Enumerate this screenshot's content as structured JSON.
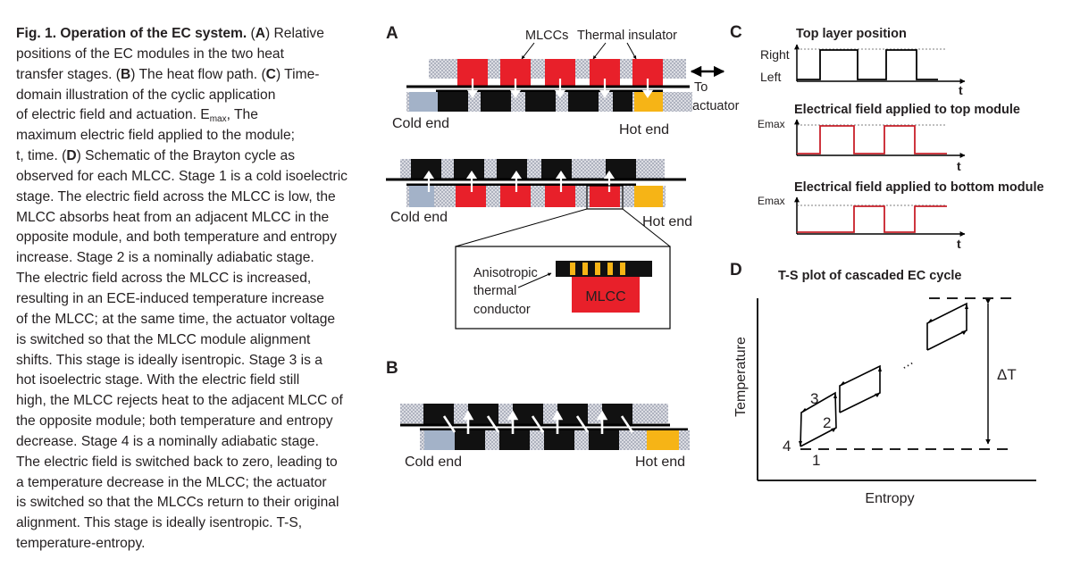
{
  "caption": {
    "fig_label": "Fig. 1. Operation of the EC system.",
    "lines": [
      [
        {
          "t": "Fig. 1. Operation of the EC system.",
          "b": true
        },
        {
          "t": " ("
        },
        {
          "t": "A",
          "b": true
        },
        {
          "t": ") Relative"
        }
      ],
      [
        {
          "t": "positions of the EC modules in the two heat"
        }
      ],
      [
        {
          "t": "transfer stages. ("
        },
        {
          "t": "B",
          "b": true
        },
        {
          "t": ") The heat flow path. ("
        },
        {
          "t": "C",
          "b": true
        },
        {
          "t": ") Time-"
        }
      ],
      [
        {
          "t": "domain illustration of the cyclic application"
        }
      ],
      [
        {
          "t": "of electric field and actuation. E"
        },
        {
          "t": "max",
          "sub": true
        },
        {
          "t": ", The"
        }
      ],
      [
        {
          "t": "maximum electric field applied to the module;"
        }
      ],
      [
        {
          "t": "t, time. ("
        },
        {
          "t": "D",
          "b": true
        },
        {
          "t": ") Schematic of the Brayton cycle as"
        }
      ],
      [
        {
          "t": "observed for each MLCC. Stage 1 is a cold isoelectric"
        }
      ],
      [
        {
          "t": "stage. The electric field across the MLCC is low, the"
        }
      ],
      [
        {
          "t": "MLCC absorbs heat from an adjacent MLCC in the"
        }
      ],
      [
        {
          "t": "opposite module, and both temperature and entropy"
        }
      ],
      [
        {
          "t": "increase. Stage 2 is a nominally adiabatic stage."
        }
      ],
      [
        {
          "t": "The electric field across the MLCC is increased,"
        }
      ],
      [
        {
          "t": "resulting in an ECE-induced temperature increase"
        }
      ],
      [
        {
          "t": "of the MLCC; at the same time, the actuator voltage"
        }
      ],
      [
        {
          "t": "is switched so that the MLCC module alignment"
        }
      ],
      [
        {
          "t": "shifts. This stage is ideally isentropic. Stage 3 is a"
        }
      ],
      [
        {
          "t": "hot isoelectric stage. With the electric field still"
        }
      ],
      [
        {
          "t": "high, the MLCC rejects heat to the adjacent MLCC of"
        }
      ],
      [
        {
          "t": "the opposite module; both temperature and entropy"
        }
      ],
      [
        {
          "t": "decrease. Stage 4 is a nominally adiabatic stage."
        }
      ],
      [
        {
          "t": "The electric field is switched back to zero, leading to"
        }
      ],
      [
        {
          "t": "a temperature decrease in the MLCC; the actuator"
        }
      ],
      [
        {
          "t": "is switched so that the MLCCs return to their original"
        }
      ],
      [
        {
          "t": "alignment. This stage is ideally isentropic. T-S,"
        }
      ],
      [
        {
          "t": "temperature-entropy."
        }
      ]
    ]
  },
  "panel_a": {
    "letter": "A",
    "mlccs_label": "MLCCs",
    "insulator_label": "Thermal insulator",
    "to_label": "To",
    "actuator_label": "actuator",
    "cold_end_1": "Cold end",
    "hot_end_1": "Hot end",
    "cold_end_2": "Cold end",
    "hot_end_2": "Hot end",
    "inset_line1": "Anisotropic",
    "inset_line2": "thermal",
    "inset_line3": "conductor",
    "inset_mlcc": "MLCC"
  },
  "panel_b": {
    "letter": "B",
    "cold_end": "Cold end",
    "hot_end": "Hot end"
  },
  "panel_c": {
    "letter": "C",
    "title1": "Top layer position",
    "right_label": "Right",
    "left_label": "Left",
    "t_label": "t",
    "title2": "Electrical field applied to top module",
    "emax_label": "Emax",
    "title3": "Electrical field applied to bottom module",
    "signals": {
      "position": [
        0,
        1,
        1,
        0,
        1,
        0,
        0
      ],
      "top_field": [
        0,
        1,
        0,
        1,
        0
      ],
      "bottom_field": [
        0,
        1,
        0,
        1,
        1
      ]
    }
  },
  "panel_d": {
    "letter": "D",
    "title": "T-S plot of cascaded EC cycle",
    "ylabel": "Temperature",
    "xlabel": "Entropy",
    "delta_label": "ΔT",
    "dots": "⋯",
    "stage1": "1",
    "stage2": "2",
    "stage3": "3",
    "stage4": "4"
  },
  "colors": {
    "mlcc_red": "#e8202a",
    "hot_yellow": "#f6b416",
    "cold_blue": "#a3b2c8",
    "block_black": "#111111",
    "signal_red": "#c8202a",
    "text": "#231f20"
  }
}
